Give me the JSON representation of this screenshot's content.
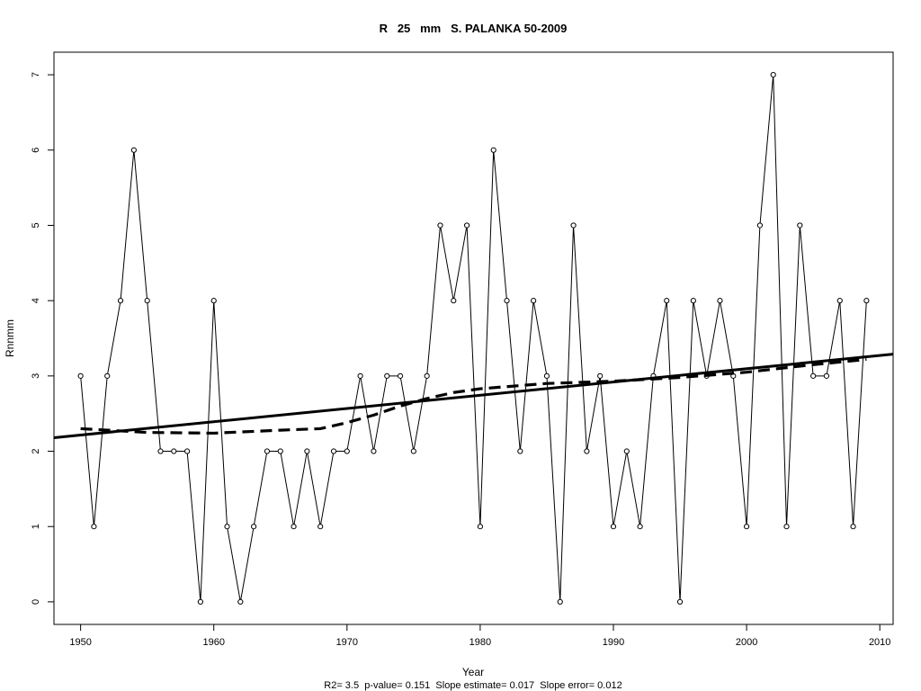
{
  "chart_data": {
    "type": "line",
    "title": "R   25   mm   S. PALANKA 50-2009",
    "xlabel": "Year",
    "ylabel": "Rnnmm",
    "footnote": "R2= 3.5  p-value= 0.151  Slope estimate= 0.017  Slope error= 0.012",
    "xlim": [
      1948,
      2011
    ],
    "ylim": [
      -0.3,
      7.3
    ],
    "x_ticks": [
      1950,
      1960,
      1970,
      1980,
      1990,
      2000,
      2010
    ],
    "y_ticks": [
      0,
      1,
      2,
      3,
      4,
      5,
      6,
      7
    ],
    "grid": false,
    "series": [
      {
        "x": [
          1950,
          1951,
          1952,
          1953,
          1954,
          1955,
          1956,
          1957,
          1958,
          1959,
          1960,
          1961,
          1962,
          1963,
          1964,
          1965,
          1966,
          1967,
          1968,
          1969,
          1970,
          1971,
          1972,
          1973,
          1974,
          1975,
          1976,
          1977,
          1978,
          1979,
          1980,
          1981,
          1982,
          1983,
          1984,
          1985,
          1986,
          1987,
          1988,
          1989,
          1990,
          1991,
          1992,
          1993,
          1994,
          1995,
          1996,
          1997,
          1998,
          1999,
          2000,
          2001,
          2002,
          2003,
          2004,
          2005,
          2006,
          2007,
          2008,
          2009
        ],
        "values": [
          3,
          1,
          3,
          4,
          6,
          4,
          2,
          2,
          2,
          0,
          4,
          1,
          0,
          1,
          2,
          2,
          1,
          2,
          1,
          2,
          2,
          3,
          2,
          3,
          3,
          2,
          3,
          5,
          4,
          5,
          1,
          6,
          4,
          2,
          4,
          3,
          0,
          5,
          2,
          3,
          1,
          2,
          1,
          3,
          4,
          0,
          4,
          3,
          4,
          3,
          1,
          5,
          7,
          1,
          5,
          3,
          3,
          4,
          1,
          4
        ],
        "style": "thin-solid-with-open-circles"
      },
      {
        "x": [
          1948,
          2011
        ],
        "values": [
          2.18,
          3.29
        ],
        "style": "thick-solid-trend"
      },
      {
        "x": [
          1950,
          1955,
          1960,
          1965,
          1968,
          1970,
          1972,
          1974,
          1976,
          1978,
          1980,
          1985,
          1990,
          1995,
          2000,
          2005,
          2009
        ],
        "values": [
          2.3,
          2.25,
          2.24,
          2.28,
          2.3,
          2.38,
          2.48,
          2.6,
          2.7,
          2.78,
          2.83,
          2.9,
          2.93,
          2.98,
          3.05,
          3.15,
          3.22
        ],
        "style": "thick-dashed-smooth"
      }
    ]
  }
}
